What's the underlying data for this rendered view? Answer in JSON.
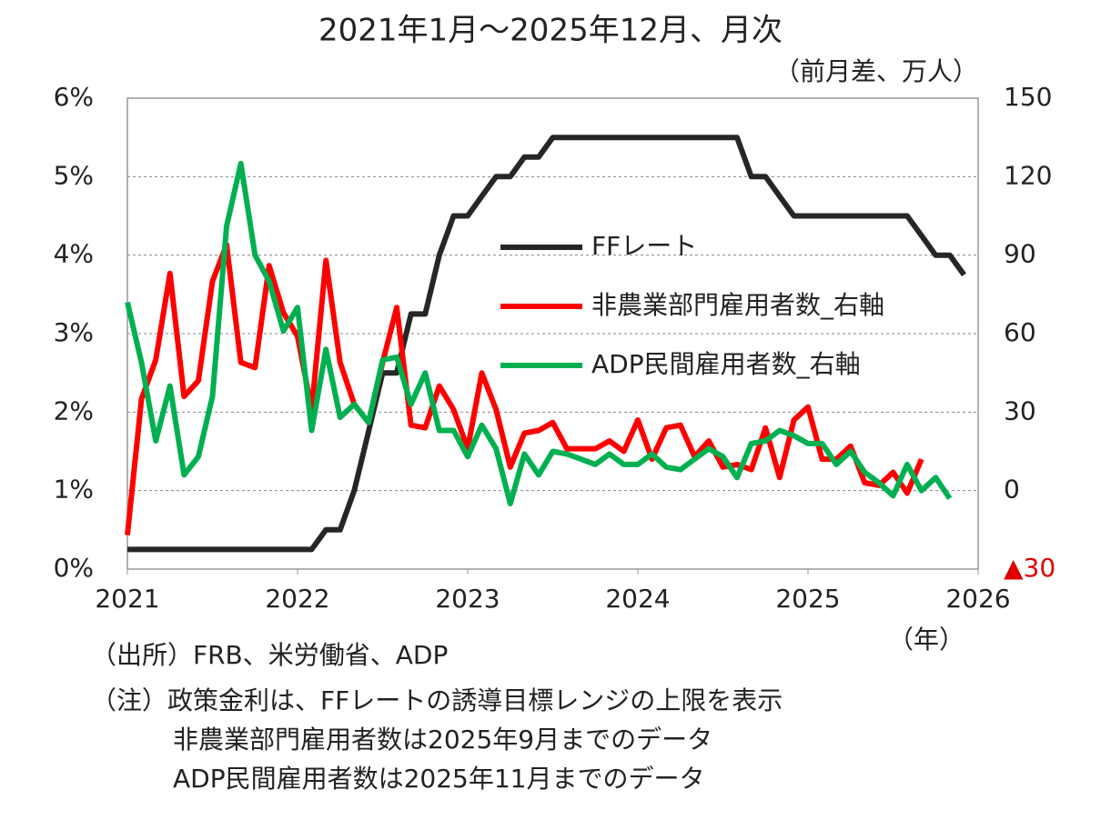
{
  "chart_data": {
    "type": "line",
    "title": "2021年1月～2025年12月、月次",
    "y2_label": "（前月差、万人）",
    "x_label": "（年）",
    "notes": [
      "（出所）FRB、米労働省、ADP",
      "（注）政策金利は、FFレートの誘導目標レンジの上限を表示",
      "非農業部門雇用者数は2025年9月までのデータ",
      "ADP民間雇用者数は2025年11月までのデータ"
    ],
    "x": [
      2021,
      2021.083,
      2021.167,
      2021.25,
      2021.333,
      2021.417,
      2021.5,
      2021.583,
      2021.667,
      2021.75,
      2021.833,
      2021.917,
      2022,
      2022.083,
      2022.167,
      2022.25,
      2022.333,
      2022.417,
      2022.5,
      2022.583,
      2022.667,
      2022.75,
      2022.833,
      2022.917,
      2023,
      2023.083,
      2023.167,
      2023.25,
      2023.333,
      2023.417,
      2023.5,
      2023.583,
      2023.667,
      2023.75,
      2023.833,
      2023.917,
      2024,
      2024.083,
      2024.167,
      2024.25,
      2024.333,
      2024.417,
      2024.5,
      2024.583,
      2024.667,
      2024.75,
      2024.833,
      2024.917,
      2025,
      2025.083,
      2025.167,
      2025.25,
      2025.333,
      2025.417,
      2025.5,
      2025.583,
      2025.667,
      2025.75,
      2025.833,
      2025.917
    ],
    "xlim": [
      2021,
      2026
    ],
    "xticks": [
      2021,
      2022,
      2023,
      2024,
      2025,
      2026
    ],
    "ylim": [
      0,
      6
    ],
    "yticks": [
      {
        "value": 0,
        "label": "0%"
      },
      {
        "value": 1,
        "label": "1%"
      },
      {
        "value": 2,
        "label": "2%"
      },
      {
        "value": 3,
        "label": "3%"
      },
      {
        "value": 4,
        "label": "4%"
      },
      {
        "value": 5,
        "label": "5%"
      },
      {
        "value": 6,
        "label": "6%"
      }
    ],
    "y2lim": [
      -30,
      150
    ],
    "y2ticks": [
      {
        "value": -30,
        "label": "▲30"
      },
      0,
      30,
      60,
      90,
      120,
      150
    ],
    "grid": true,
    "series": [
      {
        "name": "FFレート",
        "color": "#262626",
        "axis": "y",
        "values": [
          0.25,
          0.25,
          0.25,
          0.25,
          0.25,
          0.25,
          0.25,
          0.25,
          0.25,
          0.25,
          0.25,
          0.25,
          0.25,
          0.25,
          0.5,
          0.5,
          1.0,
          1.75,
          2.5,
          2.5,
          3.25,
          3.25,
          4.0,
          4.5,
          4.5,
          4.75,
          5.0,
          5.0,
          5.25,
          5.25,
          5.5,
          5.5,
          5.5,
          5.5,
          5.5,
          5.5,
          5.5,
          5.5,
          5.5,
          5.5,
          5.5,
          5.5,
          5.5,
          5.5,
          5.0,
          5.0,
          4.75,
          4.5,
          4.5,
          4.5,
          4.5,
          4.5,
          4.5,
          4.5,
          4.5,
          4.5,
          4.25,
          4.0,
          4.0,
          3.75
        ]
      },
      {
        "name": "非農業部門雇用者数_右軸",
        "color": "#ff0000",
        "axis": "y2",
        "values": [
          -17,
          35,
          50,
          83,
          36,
          42,
          80,
          94,
          49,
          47,
          86,
          68,
          59,
          31,
          88,
          49,
          33,
          26,
          49,
          70,
          25,
          24,
          40,
          31,
          16,
          45,
          31,
          9,
          22,
          23,
          26,
          16,
          16,
          16,
          19,
          15,
          27,
          12,
          24,
          25,
          13,
          19,
          9,
          10,
          8,
          24,
          5,
          27,
          32,
          12,
          12,
          17,
          3,
          2,
          7,
          -1,
          12,
          null,
          null,
          null
        ]
      },
      {
        "name": "ADP民間雇用者数_右軸",
        "color": "#00b050",
        "axis": "y2",
        "values": [
          72,
          49,
          19,
          40,
          6,
          13,
          36,
          101,
          125,
          90,
          80,
          61,
          70,
          23,
          54,
          28,
          33,
          26,
          50,
          51,
          33,
          45,
          23,
          23,
          13,
          25,
          16,
          -5,
          14,
          6,
          15,
          14,
          12,
          10,
          14,
          10,
          10,
          14,
          9,
          8,
          12,
          16,
          13,
          5,
          18,
          19,
          23,
          21,
          18,
          18,
          10,
          15,
          7,
          3,
          -2,
          10,
          0,
          5,
          -3,
          null
        ]
      }
    ]
  }
}
